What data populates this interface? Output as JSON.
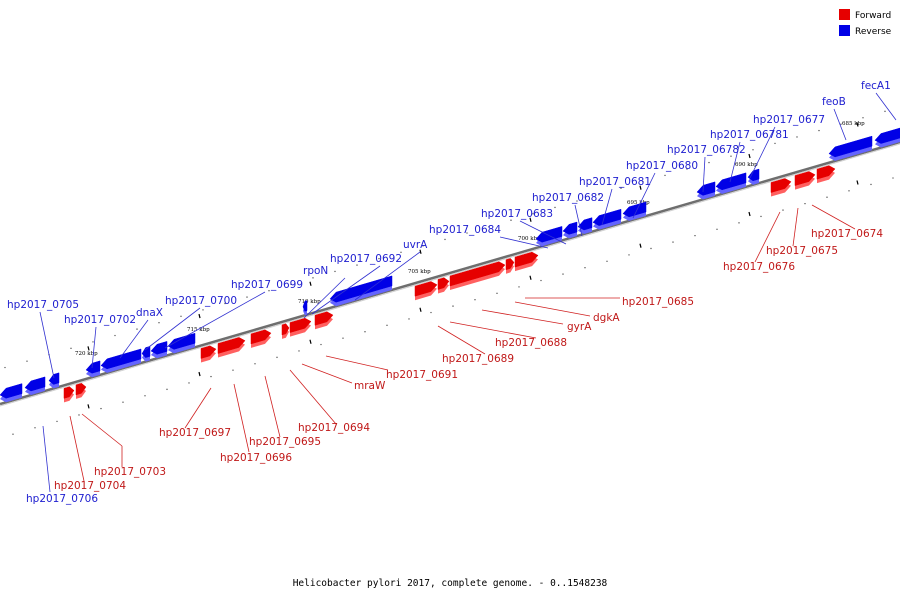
{
  "caption": "Helicobacter pylori 2017, complete genome. - 0..1548238",
  "legend": [
    {
      "label": "Forward",
      "color": "#e60000"
    },
    {
      "label": "Reverse",
      "color": "#0000e6"
    }
  ],
  "colors": {
    "forward": "#e60000",
    "forward_side": "#ff6060",
    "reverse": "#0000e6",
    "reverse_side": "#6464ff",
    "backbone": "#6e6e6e"
  },
  "kbp_ticks": [
    "720 kbp",
    "715 kbp",
    "710 kbp",
    "705 kbp",
    "700 kbp",
    "695 kbp",
    "690 kbp",
    "685 kbp"
  ],
  "reverse_genes": [
    "hp2017_0705",
    "hp2017_0706",
    "hp2017_0702",
    "dnaX",
    "hp2017_0700",
    "hp2017_0699",
    "rpoN",
    "hp2017_0692",
    "uvrA",
    "hp2017_0684",
    "hp2017_0683",
    "hp2017_0682",
    "hp2017_0681",
    "hp2017_0680",
    "hp2017_06782",
    "hp2017_06781",
    "hp2017_0677",
    "feoB",
    "fecA1"
  ],
  "forward_genes": [
    "hp2017_0704",
    "hp2017_0703",
    "hp2017_0697",
    "hp2017_0696",
    "hp2017_0695",
    "hp2017_0694",
    "mraW",
    "hp2017_0691",
    "hp2017_0689",
    "hp2017_0688",
    "gyrA",
    "dgkA",
    "hp2017_0685",
    "hp2017_0676",
    "hp2017_0675",
    "hp2017_0674"
  ]
}
